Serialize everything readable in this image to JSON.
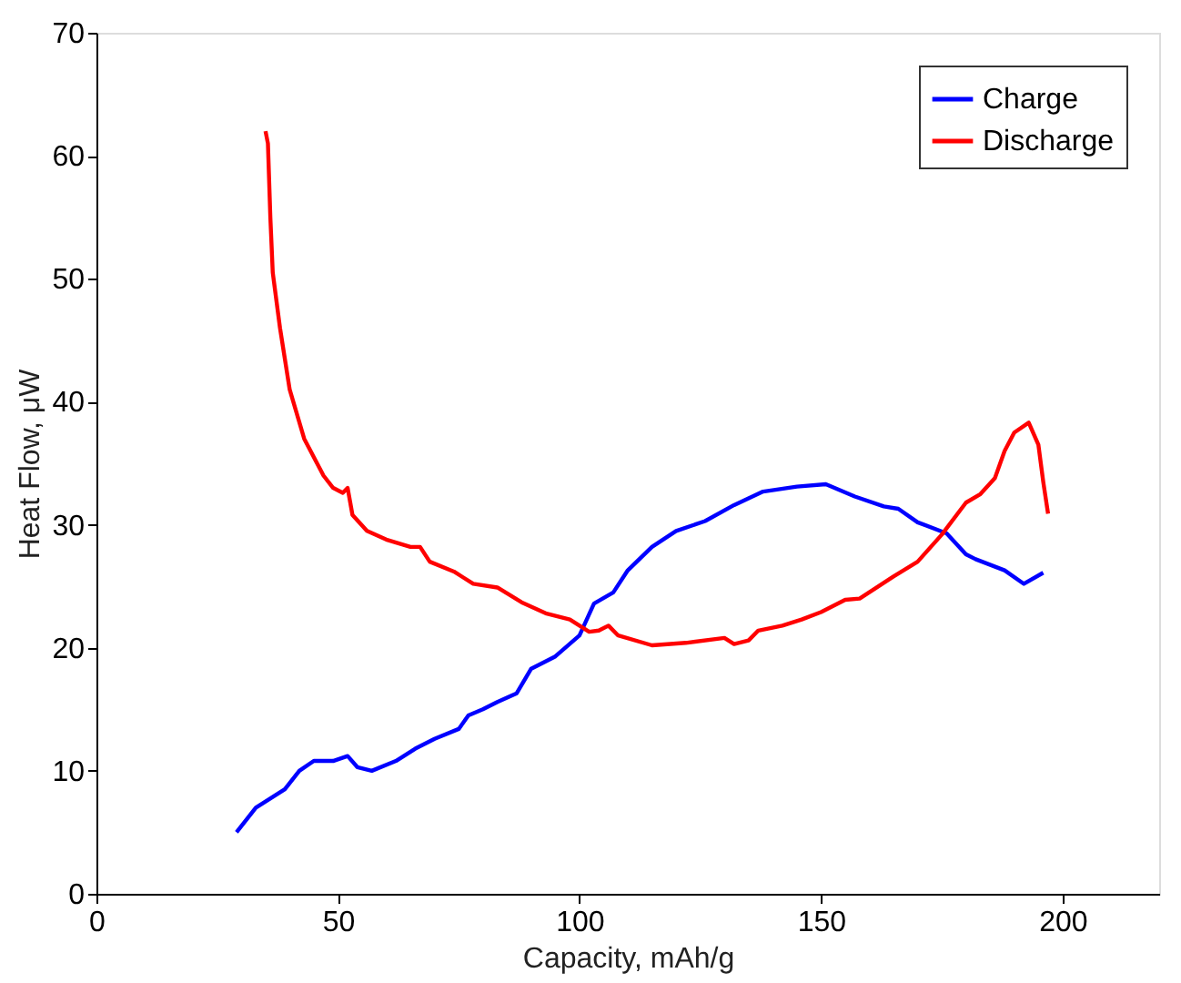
{
  "chart_data": {
    "type": "line",
    "xlabel": "Capacity, mAh/g",
    "ylabel": "Heat Flow, μW",
    "xlim": [
      0,
      220
    ],
    "xticks": [
      0,
      50,
      100,
      150,
      200
    ],
    "ylim": [
      0,
      70
    ],
    "yticks": [
      0,
      10,
      20,
      30,
      40,
      50,
      60,
      70
    ],
    "legend": "top right",
    "grid": false,
    "marker": "none",
    "line_style": "solid",
    "series": [
      {
        "name": "Charge",
        "color": "#0000ff",
        "x": [
          29,
          33,
          37,
          39,
          42,
          45,
          49,
          52,
          54,
          57,
          62,
          66,
          70,
          75,
          77,
          80,
          83,
          87,
          90,
          95,
          100,
          103,
          107,
          110,
          115,
          120,
          126,
          132,
          138,
          145,
          151,
          157,
          163,
          166,
          170,
          176,
          180,
          182,
          188,
          192,
          196
        ],
        "values": [
          5,
          7,
          8,
          8.5,
          10,
          10.8,
          10.8,
          11.2,
          10.3,
          10,
          10.8,
          11.8,
          12.6,
          13.4,
          14.5,
          15,
          15.6,
          16.3,
          18.3,
          19.3,
          21,
          23.6,
          24.5,
          26.3,
          28.2,
          29.5,
          30.3,
          31.6,
          32.7,
          33.1,
          33.3,
          32.3,
          31.5,
          31.3,
          30.2,
          29.3,
          27.6,
          27.2,
          26.3,
          25.2,
          26.1
        ]
      },
      {
        "name": "Discharge",
        "color": "#ff0000",
        "x": [
          35,
          35.5,
          36,
          36.5,
          38,
          40,
          43,
          47,
          49,
          51,
          52,
          53,
          56,
          60,
          65,
          67,
          69,
          74,
          78,
          83,
          88,
          93,
          98,
          102,
          104,
          106,
          108,
          115,
          122,
          130,
          132,
          135,
          137,
          142,
          146,
          150,
          155,
          158,
          165,
          170,
          175,
          180,
          183,
          186,
          188,
          190,
          193,
          195,
          196,
          197
        ],
        "values": [
          62,
          61,
          55,
          50.5,
          46,
          41,
          37,
          34,
          33,
          32.6,
          33,
          30.8,
          29.5,
          28.8,
          28.2,
          28.2,
          27,
          26.2,
          25.2,
          24.9,
          23.7,
          22.8,
          22.3,
          21.3,
          21.4,
          21.8,
          21,
          20.2,
          20.4,
          20.8,
          20.3,
          20.6,
          21.4,
          21.8,
          22.3,
          22.9,
          23.9,
          24,
          25.8,
          27,
          29.2,
          31.8,
          32.5,
          33.8,
          36,
          37.5,
          38.3,
          36.5,
          33.5,
          30.9
        ]
      }
    ]
  }
}
